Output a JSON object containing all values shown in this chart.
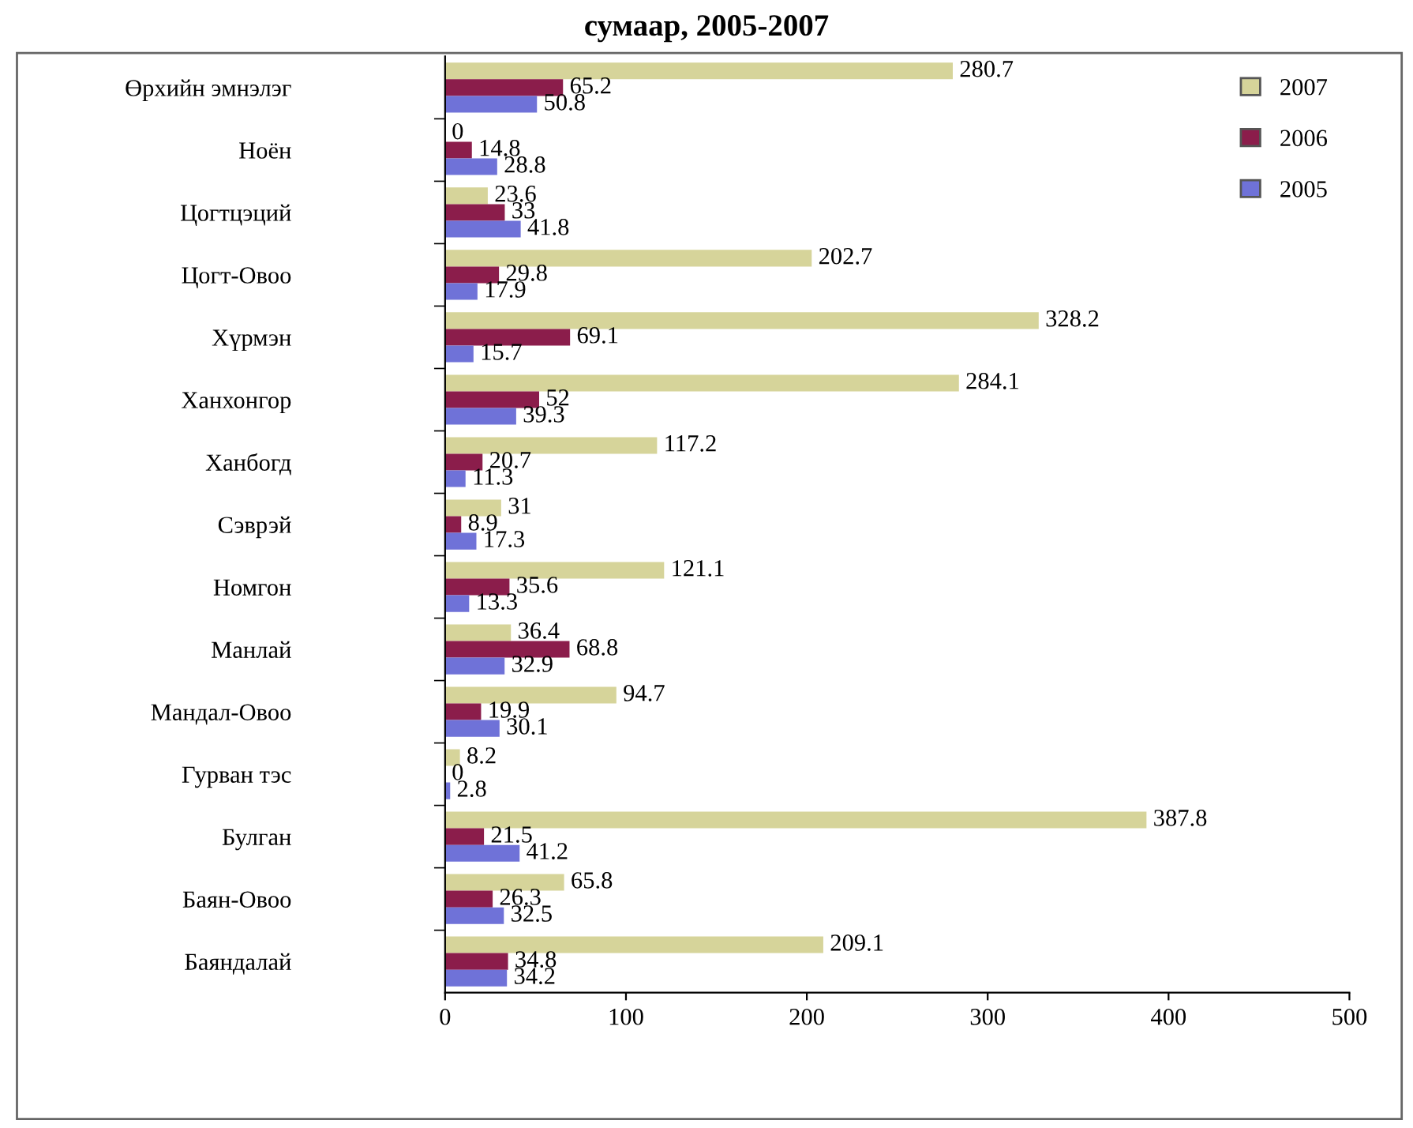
{
  "chart_data": {
    "type": "bar",
    "orientation": "horizontal",
    "title": "сумаар, 2005-2007",
    "categories": [
      "Өрхийн эмнэлэг",
      "Ноён",
      "Цогтцэций",
      "Цогт-Овоо",
      "Хүрмэн",
      "Ханхонгор",
      "Ханбогд",
      "Сэврэй",
      "Номгон",
      "Манлай",
      "Мандал-Овоо",
      "Гурван тэс",
      "Булган",
      "Баян-Овоо",
      "Баяндалай"
    ],
    "series": [
      {
        "name": "2007",
        "color": "#d6d49a",
        "values": [
          280.7,
          0,
          23.6,
          202.7,
          328.2,
          284.1,
          117.2,
          31,
          121.1,
          36.4,
          94.7,
          8.2,
          387.8,
          65.8,
          209.1
        ]
      },
      {
        "name": "2006",
        "color": "#8b1d4b",
        "values": [
          65.2,
          14.8,
          33,
          29.8,
          69.1,
          52,
          20.7,
          8.9,
          35.6,
          68.8,
          19.9,
          0,
          21.5,
          26.3,
          34.8
        ]
      },
      {
        "name": "2005",
        "color": "#6f72d8",
        "values": [
          50.8,
          28.8,
          41.8,
          17.9,
          15.7,
          39.3,
          11.3,
          17.3,
          13.3,
          32.9,
          30.1,
          2.8,
          41.2,
          32.5,
          34.2
        ]
      }
    ],
    "xlim": [
      0,
      500
    ],
    "xticks": [
      0,
      100,
      200,
      300,
      400,
      500
    ],
    "data_labels": true,
    "legend": "top right",
    "grid": false
  }
}
